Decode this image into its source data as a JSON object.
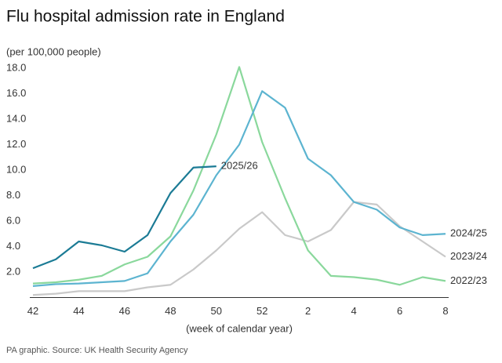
{
  "chart_data": {
    "type": "line",
    "title": "Flu hospital admission rate in England",
    "subtitle": "(per 100,000 people)",
    "x_label": "(week of calendar year)",
    "source": "PA graphic. Source: UK Health Security Agency",
    "categories": [
      "42",
      null,
      "44",
      null,
      "46",
      null,
      "48",
      null,
      "50",
      null,
      "52",
      null,
      "2",
      null,
      "4",
      null,
      "6",
      null,
      "8"
    ],
    "ylim": [
      0,
      18
    ],
    "yticks": [
      {
        "value": 2,
        "label": "2.0"
      },
      {
        "value": 4,
        "label": "4.0"
      },
      {
        "value": 6,
        "label": "6.0"
      },
      {
        "value": 8,
        "label": "8.0"
      },
      {
        "value": 10,
        "label": "10.0"
      },
      {
        "value": 12,
        "label": "12.0"
      },
      {
        "value": 14,
        "label": "14.0"
      },
      {
        "value": 16,
        "label": "16.0"
      },
      {
        "value": 18,
        "label": "18.0"
      }
    ],
    "series": [
      {
        "name": "2023/24",
        "color": "#c9c9c9",
        "values": [
          0.2,
          0.3,
          0.5,
          0.5,
          0.5,
          0.8,
          1.0,
          2.2,
          3.7,
          5.4,
          6.7,
          4.9,
          4.4,
          5.3,
          7.5,
          7.3,
          5.6,
          4.4,
          3.2
        ]
      },
      {
        "name": "2022/23",
        "color": "#8ad89c",
        "values": [
          1.1,
          1.2,
          1.4,
          1.7,
          2.6,
          3.2,
          4.8,
          8.4,
          12.8,
          18.1,
          12.2,
          7.8,
          3.7,
          1.7,
          1.6,
          1.4,
          1.0,
          1.6,
          1.3
        ]
      },
      {
        "name": "2024/25",
        "color": "#5cb4d0",
        "values": [
          0.9,
          1.05,
          1.1,
          1.2,
          1.3,
          1.9,
          4.4,
          6.5,
          9.6,
          12.0,
          16.2,
          14.9,
          10.9,
          9.6,
          7.5,
          6.9,
          5.5,
          4.9,
          5.0
        ]
      },
      {
        "name": "2025/26",
        "color": "#1b7b95",
        "values": [
          2.3,
          3.0,
          4.4,
          4.1,
          3.6,
          4.9,
          8.2,
          10.2,
          10.3,
          null,
          null,
          null,
          null,
          null,
          null,
          null,
          null,
          null,
          null
        ]
      }
    ]
  }
}
